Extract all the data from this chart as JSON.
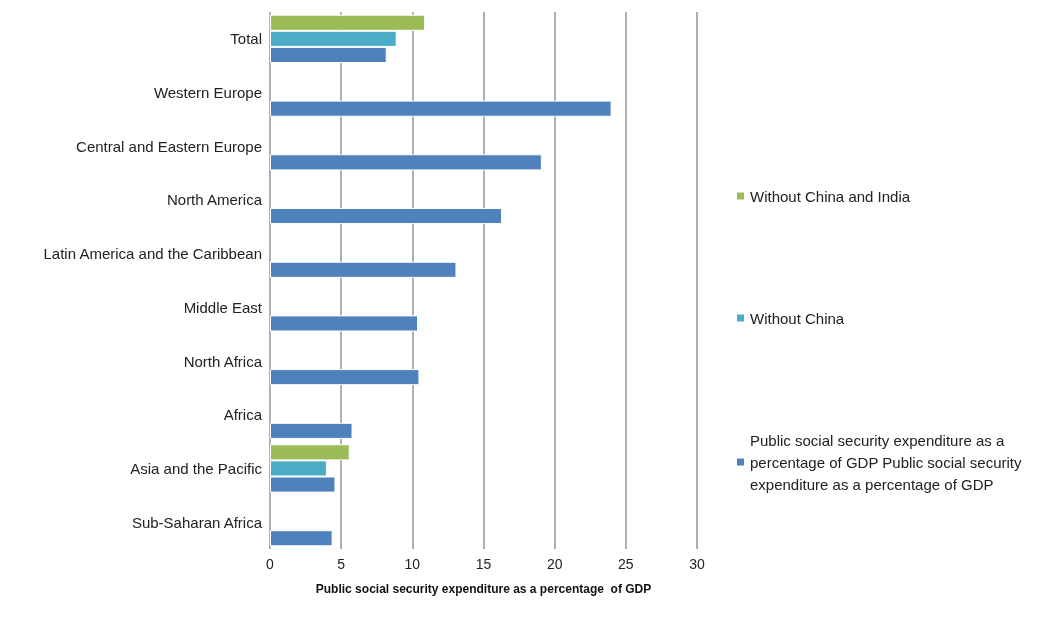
{
  "chart_data": {
    "type": "bar",
    "orientation": "horizontal",
    "xlabel": "Public social security expenditure as a percentage  of GDP",
    "categories": [
      "Total",
      "Western Europe",
      "Central and Eastern Europe",
      "North America",
      "Latin America and the Caribbean",
      "Middle East",
      "North Africa",
      "Africa",
      "Asia and the Pacific",
      "Sub-Saharan Africa"
    ],
    "series": [
      {
        "name": "Without China and India",
        "color": "#9bbb59",
        "values": [
          10.9,
          null,
          null,
          null,
          null,
          null,
          null,
          null,
          5.6,
          null
        ]
      },
      {
        "name": "Without China",
        "color": "#4bacc6",
        "values": [
          8.9,
          null,
          null,
          null,
          null,
          null,
          null,
          null,
          4.0,
          null
        ]
      },
      {
        "name": "Public social security expenditure as a percentage of GDP Public social security expenditure as a percentage of GDP",
        "color": "#4f81bd",
        "values": [
          8.2,
          24.0,
          19.1,
          16.3,
          13.1,
          10.4,
          10.5,
          5.8,
          4.6,
          4.4
        ]
      }
    ],
    "xlim": [
      0,
      30
    ],
    "xticks": [
      0,
      5,
      10,
      15,
      20,
      25,
      30
    ],
    "grid": "x",
    "legend": "right"
  }
}
